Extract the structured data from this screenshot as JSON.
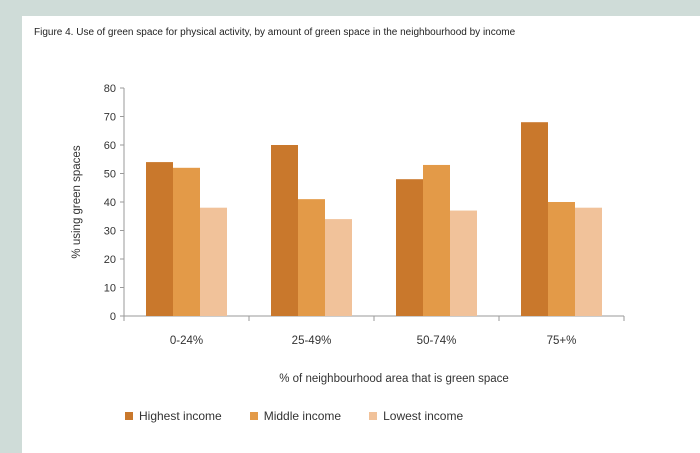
{
  "chart_data": {
    "type": "bar",
    "title": "Figure 4. Use of green space for physical activity, by amount of green space in the neighbourhood by income",
    "xlabel": "% of neighbourhood area that is green space",
    "ylabel": "% using green spaces",
    "ylim": [
      0,
      80
    ],
    "yticks": [
      "80",
      "70",
      "60",
      "50",
      "40",
      "30",
      "20",
      "10",
      "0"
    ],
    "categories": [
      "0-24%",
      "25-49%",
      "50-74%",
      "75+%"
    ],
    "series": [
      {
        "name": "Highest income",
        "values": [
          54,
          60,
          48,
          68
        ],
        "color": "#c9782c"
      },
      {
        "name": "Middle income",
        "values": [
          52,
          41,
          53,
          40
        ],
        "color": "#e39a48"
      },
      {
        "name": "Lowest income",
        "values": [
          38,
          34,
          37,
          38
        ],
        "color": "#f1c29a"
      }
    ],
    "grid": false,
    "legend": "bottom"
  }
}
